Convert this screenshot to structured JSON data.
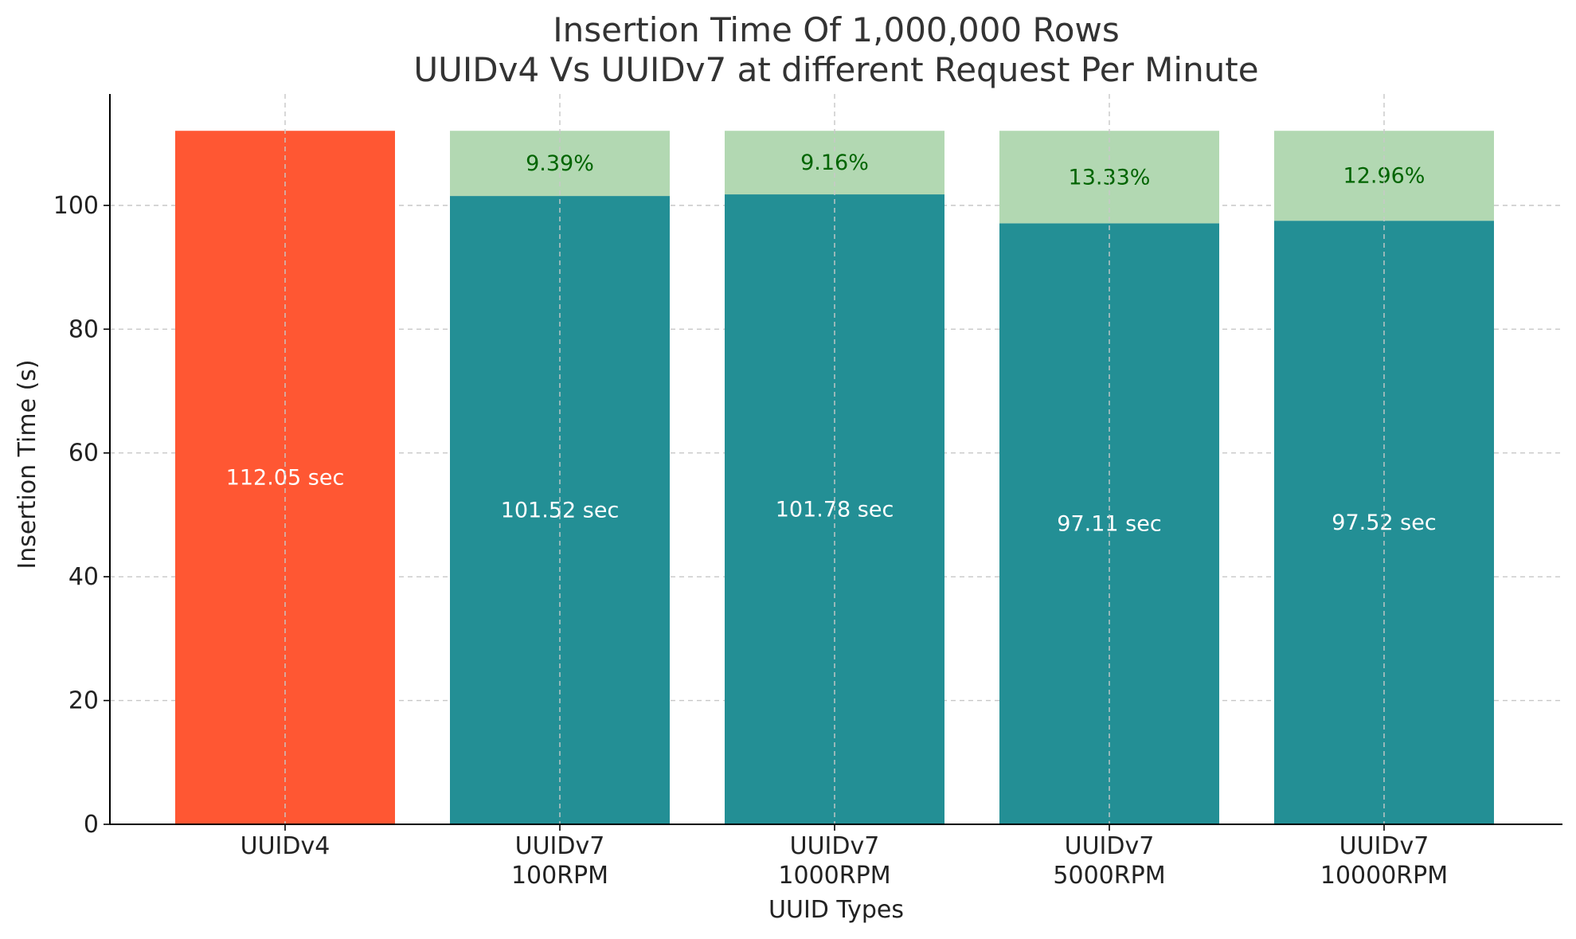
{
  "chart_data": {
    "type": "bar",
    "title": [
      "Insertion Time Of 1,000,000 Rows",
      "UUIDv4 Vs UUIDv7 at different Request Per Minute"
    ],
    "xlabel": "UUID Types",
    "ylabel": "Insertion Time (s)",
    "ylim": [
      0,
      118
    ],
    "yticks": [
      0,
      20,
      40,
      60,
      80,
      100
    ],
    "grid": true,
    "categories": [
      [
        "UUIDv4"
      ],
      [
        "UUIDv7",
        "100RPM"
      ],
      [
        "UUIDv7",
        "1000RPM"
      ],
      [
        "UUIDv7",
        "5000RPM"
      ],
      [
        "UUIDv7",
        "10000RPM"
      ]
    ],
    "series": [
      {
        "values": [
          112.05,
          101.52,
          101.78,
          97.11,
          97.52
        ]
      },
      {
        "values": [
          0,
          10.53,
          10.27,
          14.94,
          14.53
        ]
      }
    ],
    "value_labels": [
      "112.05 sec",
      "101.52 sec",
      "101.78 sec",
      "97.11 sec",
      "97.52 sec"
    ],
    "improvement_labels": [
      "",
      "9.39%",
      "9.16%",
      "13.33%",
      "12.96%"
    ],
    "colors": {
      "baseline": "#FF5733",
      "uuidv7": "#238F95",
      "improvement": "#B2D8B2",
      "value_text": "#FFFFFF",
      "improvement_text": "#006400",
      "axis": "#000000"
    }
  }
}
